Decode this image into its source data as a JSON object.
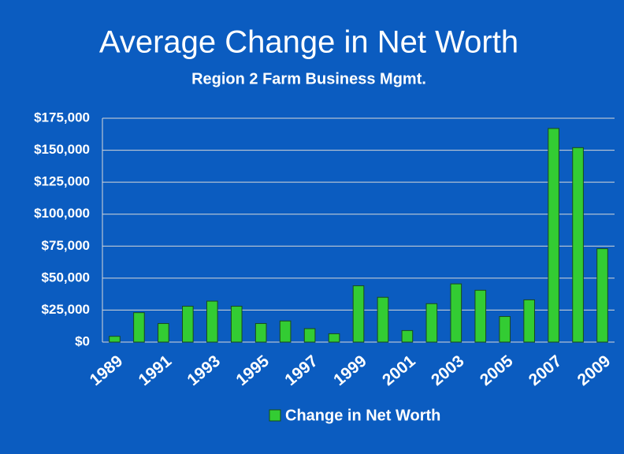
{
  "chart_data": {
    "type": "bar",
    "title": "Average Change in Net Worth",
    "subtitle": "Region 2 Farm Business Mgmt.",
    "categories": [
      "1989",
      null,
      "1991",
      null,
      "1993",
      null,
      "1995",
      null,
      "1997",
      null,
      "1999",
      null,
      "2001",
      null,
      "2003",
      null,
      "2005",
      null,
      "2007",
      null,
      "2009"
    ],
    "series": [
      {
        "name": "Change in Net Worth",
        "color": "#33cc33",
        "values": [
          4500,
          23000,
          14500,
          28000,
          32000,
          28000,
          14500,
          16500,
          10500,
          6500,
          44000,
          35000,
          9000,
          30000,
          45500,
          40500,
          20000,
          33000,
          167000,
          152000,
          73000
        ]
      }
    ],
    "ylim": [
      0,
      175000
    ],
    "yticks": [
      {
        "value": 0,
        "label": "$0"
      },
      {
        "value": 25000,
        "label": "$25,000"
      },
      {
        "value": 50000,
        "label": "$50,000"
      },
      {
        "value": 75000,
        "label": "$75,000"
      },
      {
        "value": 100000,
        "label": "$100,000"
      },
      {
        "value": 125000,
        "label": "$125,000"
      },
      {
        "value": 150000,
        "label": "$150,000"
      },
      {
        "value": 175000,
        "label": "$175,000"
      }
    ],
    "grid": true
  }
}
